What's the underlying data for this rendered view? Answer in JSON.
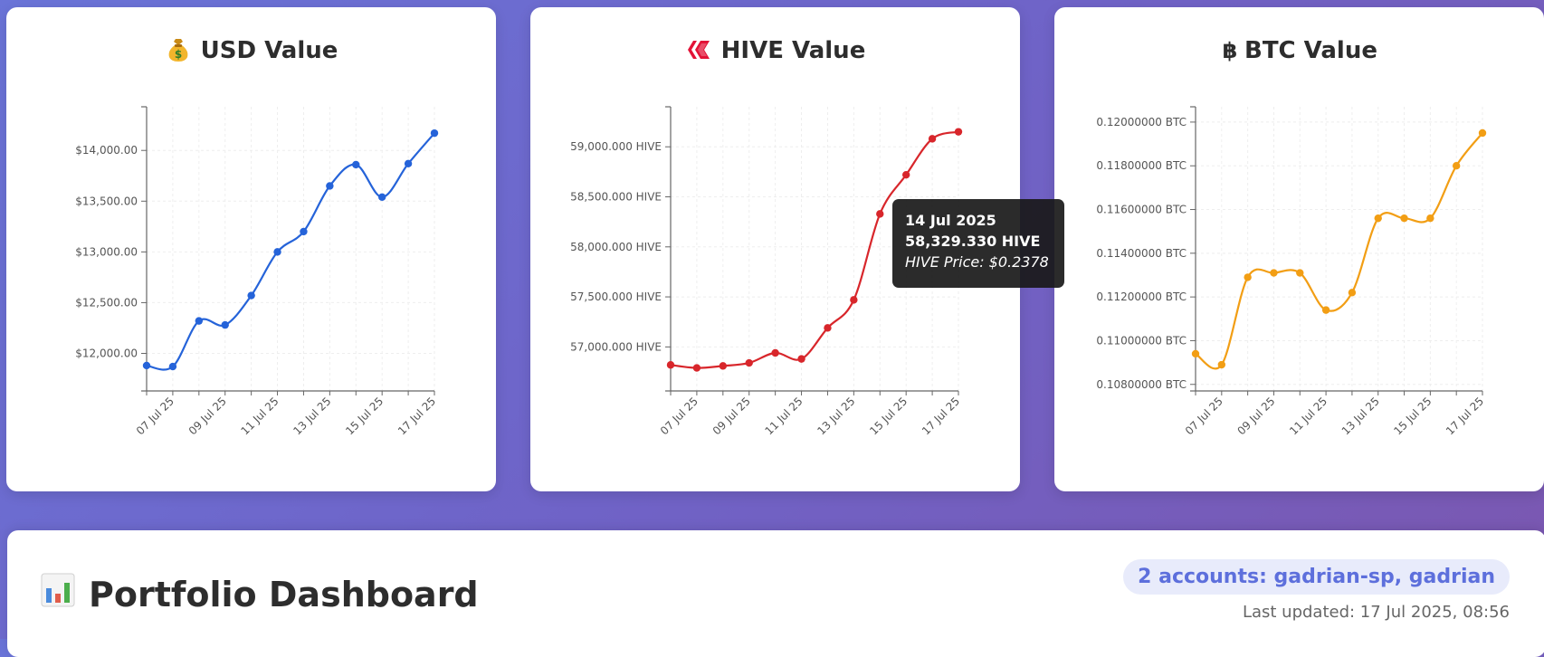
{
  "charts": {
    "usd": {
      "title": "USD Value",
      "icon": "money-bag-icon",
      "color": "#2563d9"
    },
    "hive": {
      "title": "HIVE Value",
      "icon": "hive-logo-icon",
      "color": "#d8262b"
    },
    "btc": {
      "title": "BTC Value",
      "icon": "bitcoin-icon",
      "color": "#f29e14"
    }
  },
  "tooltip": {
    "date": "14 Jul 2025",
    "value": "58,329.330 HIVE",
    "price": "HIVE Price: $0.2378"
  },
  "dashboard": {
    "title": "Portfolio Dashboard",
    "accounts": "2 accounts: gadrian-sp, gadrian",
    "last_updated": "Last updated: 17 Jul 2025, 08:56"
  },
  "chart_data": [
    {
      "type": "line",
      "title": "USD Value",
      "x": [
        "06 Jul 25",
        "07 Jul 25",
        "08 Jul 25",
        "09 Jul 25",
        "10 Jul 25",
        "11 Jul 25",
        "12 Jul 25",
        "13 Jul 25",
        "14 Jul 25",
        "15 Jul 25",
        "16 Jul 25",
        "17 Jul 25"
      ],
      "xticks": [
        "07 Jul 25",
        "09 Jul 25",
        "11 Jul 25",
        "13 Jul 25",
        "15 Jul 25",
        "17 Jul 25"
      ],
      "yticks": [
        "$12,000.00",
        "$12,500.00",
        "$13,000.00",
        "$13,500.00",
        "$14,000.00"
      ],
      "ytick_values": [
        12000,
        12500,
        13000,
        13500,
        14000
      ],
      "ylim": [
        11630,
        14430
      ],
      "series": [
        {
          "values": [
            11880,
            11870,
            12320,
            12280,
            12570,
            13000,
            13200,
            13650,
            13860,
            13540,
            13870,
            14170
          ]
        }
      ],
      "grid": true
    },
    {
      "type": "line",
      "title": "HIVE Value",
      "x": [
        "06 Jul 25",
        "07 Jul 25",
        "08 Jul 25",
        "09 Jul 25",
        "10 Jul 25",
        "11 Jul 25",
        "12 Jul 25",
        "13 Jul 25",
        "14 Jul 25",
        "15 Jul 25",
        "16 Jul 25",
        "17 Jul 25"
      ],
      "xticks": [
        "07 Jul 25",
        "09 Jul 25",
        "11 Jul 25",
        "13 Jul 25",
        "15 Jul 25",
        "17 Jul 25"
      ],
      "yticks": [
        "57,000.000 HIVE",
        "57,500.000 HIVE",
        "58,000.000 HIVE",
        "58,500.000 HIVE",
        "59,000.000 HIVE"
      ],
      "ytick_values": [
        57000,
        57500,
        58000,
        58500,
        59000
      ],
      "ylim": [
        56560,
        59400
      ],
      "series": [
        {
          "values": [
            56820,
            56790,
            56810,
            56840,
            56940,
            56880,
            57190,
            57470,
            58329.33,
            58720,
            59080,
            59150
          ]
        }
      ],
      "grid": true
    },
    {
      "type": "line",
      "title": "BTC Value",
      "x": [
        "06 Jul 25",
        "07 Jul 25",
        "08 Jul 25",
        "09 Jul 25",
        "10 Jul 25",
        "11 Jul 25",
        "12 Jul 25",
        "13 Jul 25",
        "14 Jul 25",
        "15 Jul 25",
        "16 Jul 25",
        "17 Jul 25"
      ],
      "xticks": [
        "07 Jul 25",
        "09 Jul 25",
        "11 Jul 25",
        "13 Jul 25",
        "15 Jul 25",
        "17 Jul 25"
      ],
      "yticks": [
        "0.10800000 BTC",
        "0.11000000 BTC",
        "0.11200000 BTC",
        "0.11400000 BTC",
        "0.11600000 BTC",
        "0.11800000 BTC",
        "0.12000000 BTC"
      ],
      "ytick_values": [
        0.108,
        0.11,
        0.112,
        0.114,
        0.116,
        0.118,
        0.12
      ],
      "ylim": [
        0.1077,
        0.1207
      ],
      "series": [
        {
          "values": [
            0.1094,
            0.1089,
            0.1129,
            0.1131,
            0.1131,
            0.1114,
            0.1122,
            0.1156,
            0.1156,
            0.1156,
            0.118,
            0.1195
          ]
        }
      ],
      "grid": true
    }
  ]
}
